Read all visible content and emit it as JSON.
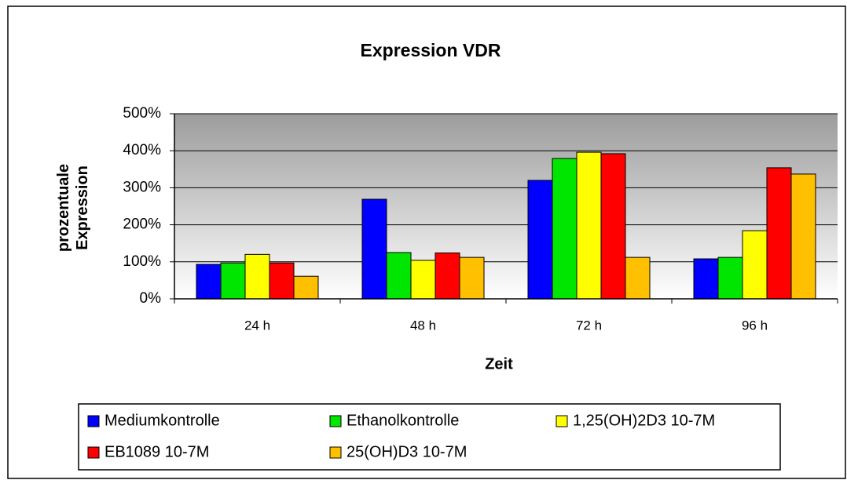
{
  "chart_data": {
    "type": "bar",
    "title": "Expression VDR",
    "xlabel": "Zeit",
    "ylabel": "prozentuale Expression",
    "categories": [
      "24 h",
      "48 h",
      "72 h",
      "96 h"
    ],
    "series": [
      {
        "name": "Mediumkontrolle",
        "color": "#0000ff",
        "values": [
          93,
          269,
          320,
          108
        ]
      },
      {
        "name": "Ethanolkontrolle",
        "color": "#00e600",
        "values": [
          97,
          125,
          379,
          112
        ]
      },
      {
        "name": "1,25(OH)2D3 10-7M",
        "color": "#ffff00",
        "values": [
          120,
          104,
          396,
          184
        ]
      },
      {
        "name": "EB1089 10-7M",
        "color": "#ff0000",
        "values": [
          97,
          124,
          392,
          354
        ]
      },
      {
        "name": "25(OH)D3 10-7M",
        "color": "#ffc000",
        "values": [
          61,
          112,
          112,
          337
        ]
      }
    ],
    "ylim": [
      0,
      500
    ],
    "yticks": [
      {
        "value": 0,
        "label": "0%"
      },
      {
        "value": 100,
        "label": "100%"
      },
      {
        "value": 200,
        "label": "200%"
      },
      {
        "value": 300,
        "label": "300%"
      },
      {
        "value": 400,
        "label": "400%"
      },
      {
        "value": 500,
        "label": "500%"
      }
    ],
    "grid": true
  }
}
